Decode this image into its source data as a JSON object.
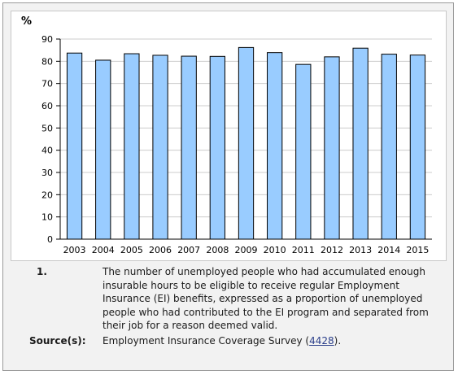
{
  "chart_data": {
    "type": "bar",
    "unit_label": "%",
    "categories": [
      "2003",
      "2004",
      "2005",
      "2006",
      "2007",
      "2008",
      "2009",
      "2010",
      "2011",
      "2012",
      "2013",
      "2014",
      "2015"
    ],
    "values": [
      83.7,
      80.5,
      83.4,
      82.7,
      82.3,
      82.2,
      86.2,
      83.9,
      78.6,
      82.0,
      85.9,
      83.2,
      82.8
    ],
    "ylim": [
      0,
      90
    ],
    "yticks": [
      0,
      10,
      20,
      30,
      40,
      50,
      60,
      70,
      80,
      90
    ],
    "grid": true,
    "bar_color": "#99ccff",
    "bar_stroke": "#000000",
    "title": "",
    "xlabel": "",
    "ylabel": ""
  },
  "footnotes": {
    "note_number": "1.",
    "note_text": "The number of unemployed people who had accumulated enough insurable hours to be eligible to receive regular Employment Insurance (EI) benefits, expressed as a proportion of unemployed people who had contributed to the EI program and separated from their job for a reason deemed valid.",
    "source_label": "Source(s):",
    "source_text_before": "Employment Insurance Coverage Survey (",
    "source_link": "4428",
    "source_text_after": ")."
  }
}
